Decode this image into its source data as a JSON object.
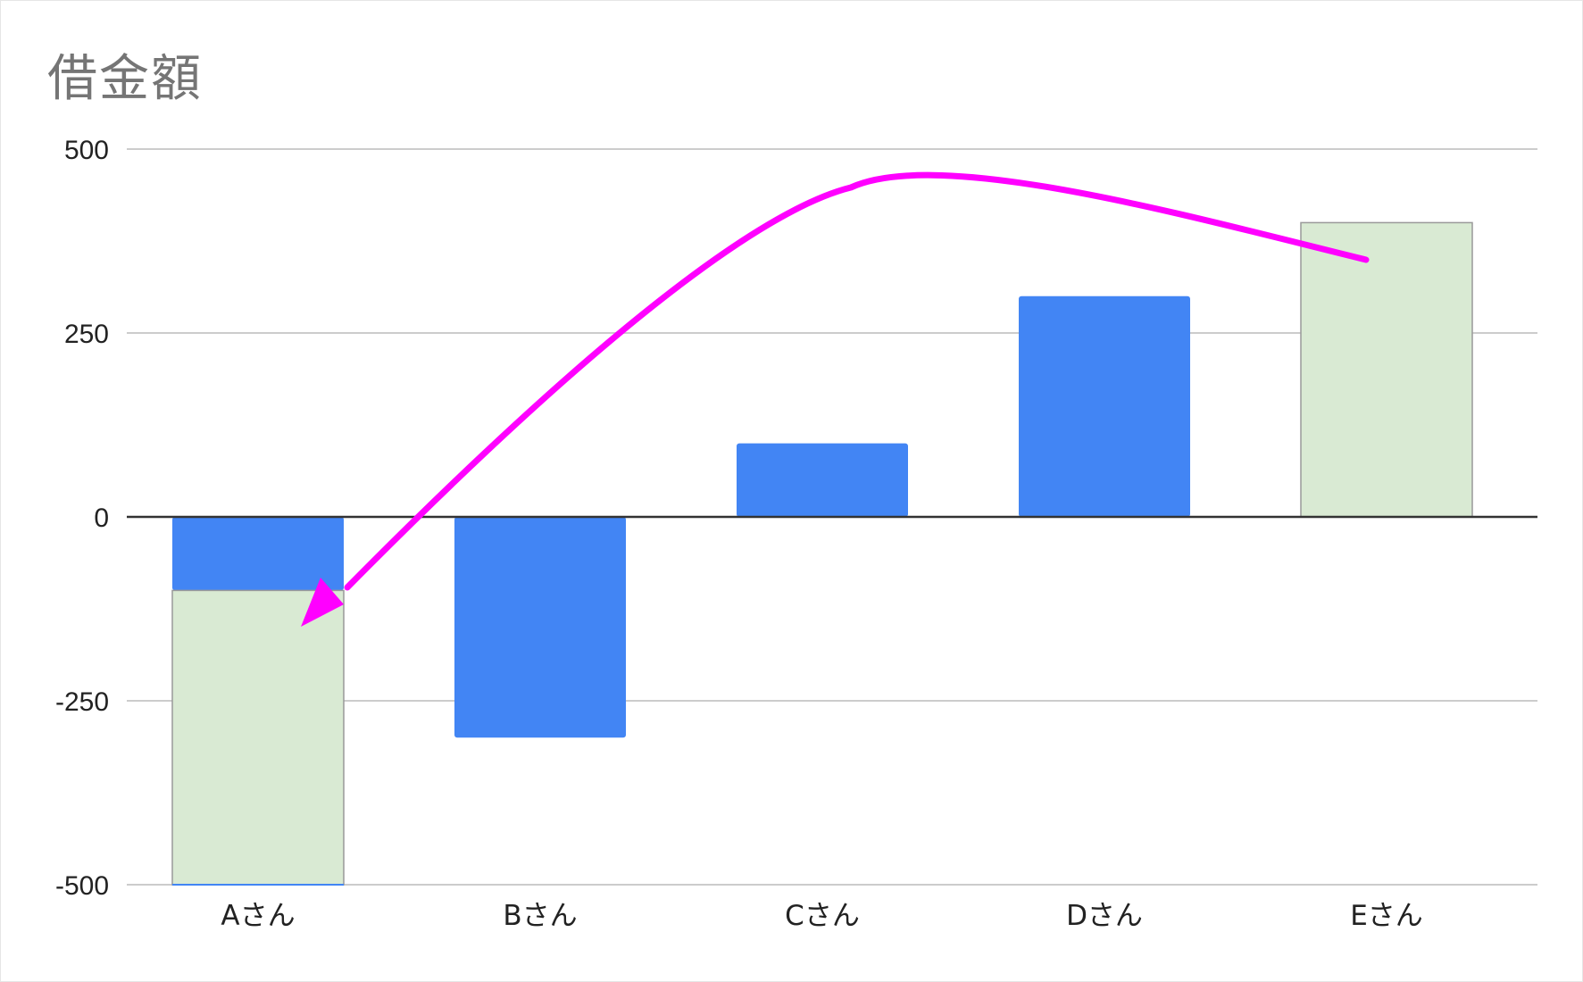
{
  "chart_data": {
    "type": "bar",
    "title": "借金額",
    "xlabel": "",
    "ylabel": "",
    "ylim": [
      -500,
      500
    ],
    "yticks": [
      500,
      250,
      0,
      -250,
      -500
    ],
    "categories": [
      "Aさん",
      "Bさん",
      "Cさん",
      "Dさん",
      "Eさん"
    ],
    "series": [
      {
        "color": "#4285f4",
        "values": [
          -100,
          -300,
          100,
          300,
          0
        ]
      },
      {
        "color": "#d9ead3",
        "stroke": "#999999",
        "ranges": [
          [
            -100,
            -500
          ],
          null,
          null,
          null,
          [
            0,
            400
          ]
        ]
      }
    ],
    "grid": true,
    "legend": "none",
    "annotation": {
      "type": "curved-arrow",
      "from": "Eさん",
      "to": "Aさん",
      "color": "#ff00ff"
    }
  }
}
